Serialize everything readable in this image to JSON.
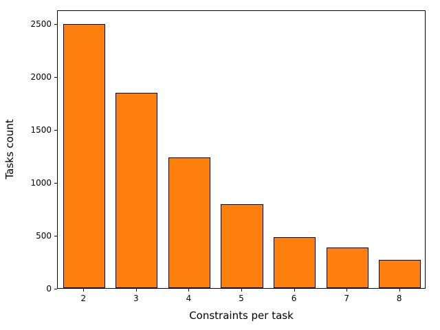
{
  "chart_data": {
    "type": "bar",
    "title": "",
    "xlabel": "Constraints per task",
    "ylabel": "Tasks count",
    "categories": [
      "2",
      "3",
      "4",
      "5",
      "6",
      "7",
      "8"
    ],
    "values": [
      2505,
      1855,
      1240,
      795,
      485,
      385,
      265
    ],
    "ylim": [
      0,
      2630
    ],
    "yticks": [
      0,
      500,
      1000,
      1500,
      2000,
      2500
    ],
    "bar_color": "#ff7f0e",
    "bar_edge_color": "#000000",
    "bar_width_fraction": 0.8,
    "grid": "off",
    "legend": "none"
  }
}
